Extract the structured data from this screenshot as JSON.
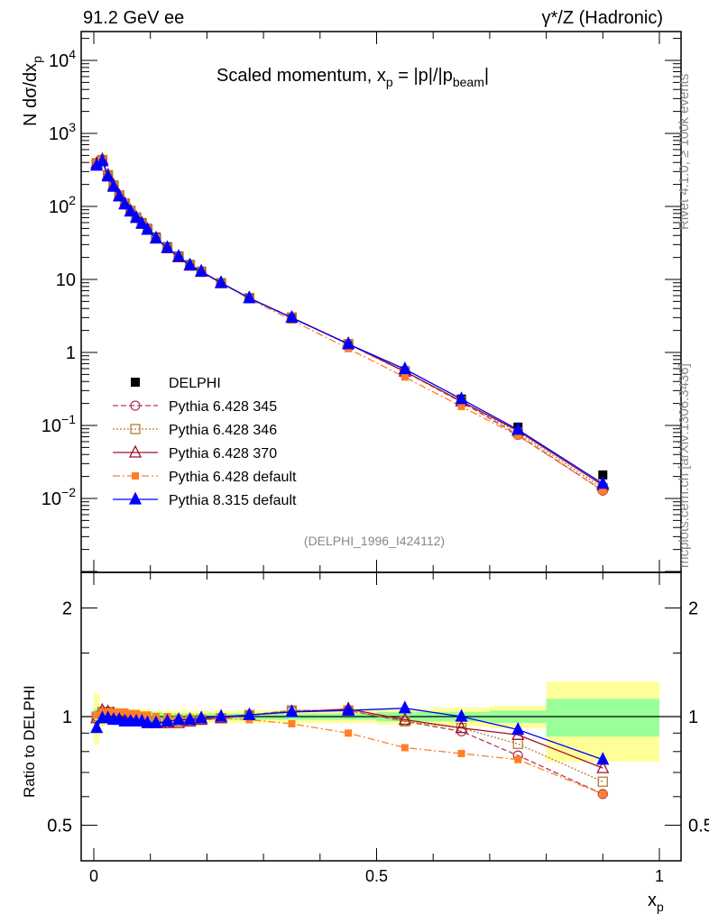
{
  "header": {
    "left": "91.2 GeV ee",
    "right": "γ*/Z (Hadronic)"
  },
  "side": {
    "rivet": "Rivet 4.1.0, ≥ 100k events",
    "mcplots": "mcplots.cern.ch [arXiv:1306.3436]"
  },
  "chart_data": {
    "type": "scatter",
    "title": "Scaled momentum, x_p = |p|/|p_beam|",
    "title_parts": {
      "a": "Scaled momentum, x",
      "b": "p",
      "c": " = |p|/|p",
      "d": "beam",
      "e": "|"
    },
    "ylabel": {
      "a": "N  dσ/dx",
      "b": "p"
    },
    "xlabel": {
      "a": "x",
      "b": "p"
    },
    "ratio_ylabel": "Ratio to DELPHI",
    "reference": "(DELPHI_1996_I424112)",
    "xlim": [
      0,
      1
    ],
    "ylim": [
      0.001,
      26000
    ],
    "yscale": "log",
    "ratio_ylim": [
      0.4,
      2.5
    ],
    "xticks": [
      "0",
      "0.5",
      "1"
    ],
    "yticks": [
      {
        "v": 10000,
        "b": "10",
        "e": "4"
      },
      {
        "v": 1000,
        "b": "10",
        "e": "3"
      },
      {
        "v": 100,
        "b": "10",
        "e": "2"
      },
      {
        "v": 10,
        "b": "10",
        "e": ""
      },
      {
        "v": 1,
        "b": "1",
        "e": ""
      },
      {
        "v": 0.1,
        "b": "10",
        "e": "−1"
      },
      {
        "v": 0.01,
        "b": "10",
        "e": "−2"
      }
    ],
    "ratio_yticks": [
      "0.5",
      "1",
      "2"
    ],
    "x": [
      0.005,
      0.015,
      0.025,
      0.035,
      0.045,
      0.055,
      0.065,
      0.075,
      0.085,
      0.095,
      0.11,
      0.13,
      0.15,
      0.17,
      0.19,
      0.225,
      0.275,
      0.35,
      0.45,
      0.55,
      0.65,
      0.75,
      0.9
    ],
    "bin_edges": [
      0,
      0.01,
      0.02,
      0.03,
      0.04,
      0.05,
      0.06,
      0.07,
      0.08,
      0.09,
      0.1,
      0.12,
      0.14,
      0.16,
      0.18,
      0.2,
      0.25,
      0.3,
      0.4,
      0.5,
      0.6,
      0.7,
      0.8,
      1.0
    ],
    "data": {
      "name": "DELPHI",
      "values": [
        390,
        420,
        260,
        190,
        140,
        110,
        88,
        72,
        60,
        50,
        38,
        28,
        21,
        16,
        13,
        9,
        5.5,
        2.9,
        1.25,
        0.56,
        0.23,
        0.095,
        0.021
      ],
      "band_total": [
        0.16,
        0.06,
        0.05,
        0.05,
        0.05,
        0.05,
        0.05,
        0.05,
        0.05,
        0.05,
        0.04,
        0.04,
        0.04,
        0.04,
        0.04,
        0.04,
        0.04,
        0.04,
        0.04,
        0.05,
        0.06,
        0.07,
        0.25
      ],
      "band_stat": [
        0.05,
        0.03,
        0.03,
        0.03,
        0.03,
        0.03,
        0.03,
        0.03,
        0.03,
        0.03,
        0.03,
        0.02,
        0.02,
        0.02,
        0.02,
        0.02,
        0.02,
        0.02,
        0.02,
        0.03,
        0.03,
        0.04,
        0.12
      ]
    },
    "series": [
      {
        "name": "Pythia 6.428 345",
        "color": "#b03a5a",
        "marker": "open-circle",
        "dash": "6,3",
        "ratio": [
          1.0,
          1.03,
          1.03,
          1.02,
          1.01,
          1.0,
          0.99,
          0.98,
          0.97,
          0.97,
          0.96,
          0.96,
          0.97,
          0.97,
          0.98,
          0.99,
          1.01,
          1.04,
          1.04,
          0.97,
          0.91,
          0.78,
          0.61
        ]
      },
      {
        "name": "Pythia 6.428 346",
        "color": "#b08030",
        "marker": "open-square",
        "dash": "2,2",
        "ratio": [
          1.0,
          1.03,
          1.03,
          1.02,
          1.01,
          1.0,
          0.99,
          0.98,
          0.97,
          0.97,
          0.96,
          0.96,
          0.97,
          0.97,
          0.98,
          0.99,
          1.01,
          1.04,
          1.04,
          0.97,
          0.93,
          0.84,
          0.66
        ]
      },
      {
        "name": "Pythia 6.428 370",
        "color": "#a0102a",
        "marker": "open-triangle",
        "dash": "",
        "ratio": [
          0.99,
          1.04,
          1.03,
          1.02,
          1.0,
          0.99,
          0.98,
          0.97,
          0.97,
          0.96,
          0.96,
          0.96,
          0.96,
          0.97,
          0.98,
          0.99,
          1.01,
          1.03,
          1.05,
          0.98,
          0.93,
          0.89,
          0.72
        ]
      },
      {
        "name": "Pythia 6.428 default",
        "color": "#ff7f27",
        "marker": "filled-square",
        "dash": "8,3,2,3",
        "ratio": [
          1.01,
          1.03,
          1.03,
          1.03,
          1.03,
          1.03,
          1.02,
          1.02,
          1.01,
          1.01,
          1.0,
          1.0,
          0.99,
          0.99,
          0.99,
          0.99,
          0.98,
          0.955,
          0.9,
          0.82,
          0.79,
          0.76,
          0.61
        ]
      },
      {
        "name": "Pythia 8.315 default",
        "color": "#0000ff",
        "marker": "filled-triangle",
        "dash": "",
        "ratio": [
          0.93,
          0.99,
          0.99,
          0.98,
          0.98,
          0.97,
          0.97,
          0.97,
          0.97,
          0.96,
          0.96,
          0.97,
          0.98,
          0.98,
          0.99,
          1.0,
          1.01,
          1.03,
          1.04,
          1.055,
          1.0,
          0.92,
          0.76
        ]
      }
    ]
  }
}
